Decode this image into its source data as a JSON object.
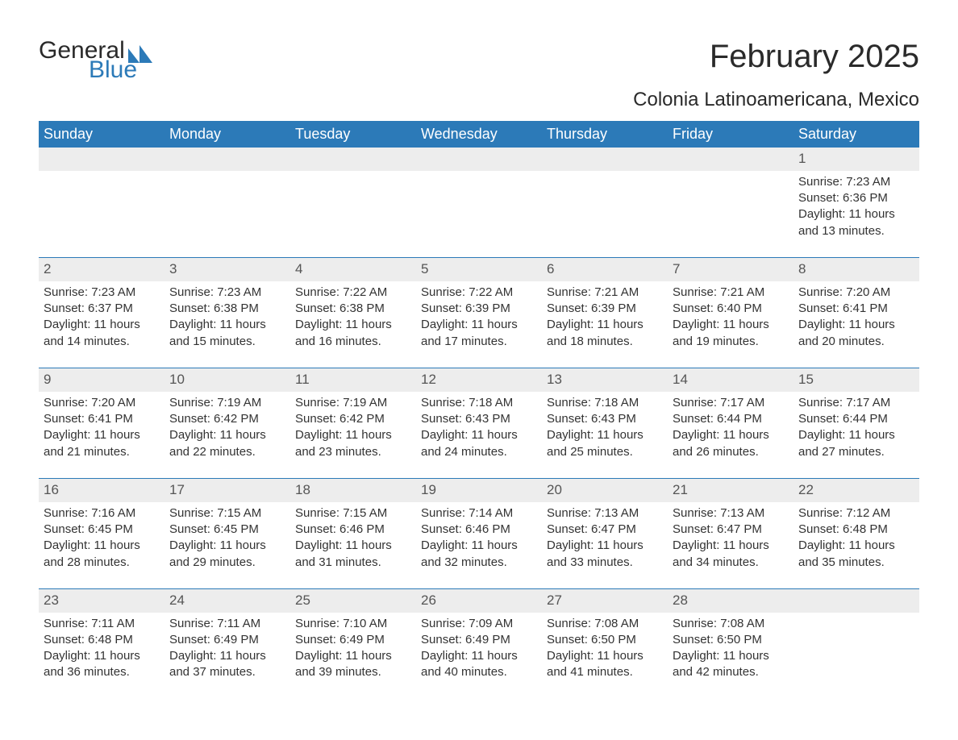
{
  "logo": {
    "text_general": "General",
    "text_blue": "Blue",
    "mark_color": "#2c7ab8"
  },
  "title": "February 2025",
  "location": "Colonia Latinoamericana, Mexico",
  "colors": {
    "header_bg": "#2c7ab8",
    "header_text": "#ffffff",
    "daynum_bg": "#ededed",
    "text": "#333333",
    "rule": "#2c7ab8"
  },
  "weekdays": [
    "Sunday",
    "Monday",
    "Tuesday",
    "Wednesday",
    "Thursday",
    "Friday",
    "Saturday"
  ],
  "weeks": [
    [
      {
        "day": "",
        "sunrise": "",
        "sunset": "",
        "daylight1": "",
        "daylight2": ""
      },
      {
        "day": "",
        "sunrise": "",
        "sunset": "",
        "daylight1": "",
        "daylight2": ""
      },
      {
        "day": "",
        "sunrise": "",
        "sunset": "",
        "daylight1": "",
        "daylight2": ""
      },
      {
        "day": "",
        "sunrise": "",
        "sunset": "",
        "daylight1": "",
        "daylight2": ""
      },
      {
        "day": "",
        "sunrise": "",
        "sunset": "",
        "daylight1": "",
        "daylight2": ""
      },
      {
        "day": "",
        "sunrise": "",
        "sunset": "",
        "daylight1": "",
        "daylight2": ""
      },
      {
        "day": "1",
        "sunrise": "Sunrise: 7:23 AM",
        "sunset": "Sunset: 6:36 PM",
        "daylight1": "Daylight: 11 hours",
        "daylight2": "and 13 minutes."
      }
    ],
    [
      {
        "day": "2",
        "sunrise": "Sunrise: 7:23 AM",
        "sunset": "Sunset: 6:37 PM",
        "daylight1": "Daylight: 11 hours",
        "daylight2": "and 14 minutes."
      },
      {
        "day": "3",
        "sunrise": "Sunrise: 7:23 AM",
        "sunset": "Sunset: 6:38 PM",
        "daylight1": "Daylight: 11 hours",
        "daylight2": "and 15 minutes."
      },
      {
        "day": "4",
        "sunrise": "Sunrise: 7:22 AM",
        "sunset": "Sunset: 6:38 PM",
        "daylight1": "Daylight: 11 hours",
        "daylight2": "and 16 minutes."
      },
      {
        "day": "5",
        "sunrise": "Sunrise: 7:22 AM",
        "sunset": "Sunset: 6:39 PM",
        "daylight1": "Daylight: 11 hours",
        "daylight2": "and 17 minutes."
      },
      {
        "day": "6",
        "sunrise": "Sunrise: 7:21 AM",
        "sunset": "Sunset: 6:39 PM",
        "daylight1": "Daylight: 11 hours",
        "daylight2": "and 18 minutes."
      },
      {
        "day": "7",
        "sunrise": "Sunrise: 7:21 AM",
        "sunset": "Sunset: 6:40 PM",
        "daylight1": "Daylight: 11 hours",
        "daylight2": "and 19 minutes."
      },
      {
        "day": "8",
        "sunrise": "Sunrise: 7:20 AM",
        "sunset": "Sunset: 6:41 PM",
        "daylight1": "Daylight: 11 hours",
        "daylight2": "and 20 minutes."
      }
    ],
    [
      {
        "day": "9",
        "sunrise": "Sunrise: 7:20 AM",
        "sunset": "Sunset: 6:41 PM",
        "daylight1": "Daylight: 11 hours",
        "daylight2": "and 21 minutes."
      },
      {
        "day": "10",
        "sunrise": "Sunrise: 7:19 AM",
        "sunset": "Sunset: 6:42 PM",
        "daylight1": "Daylight: 11 hours",
        "daylight2": "and 22 minutes."
      },
      {
        "day": "11",
        "sunrise": "Sunrise: 7:19 AM",
        "sunset": "Sunset: 6:42 PM",
        "daylight1": "Daylight: 11 hours",
        "daylight2": "and 23 minutes."
      },
      {
        "day": "12",
        "sunrise": "Sunrise: 7:18 AM",
        "sunset": "Sunset: 6:43 PM",
        "daylight1": "Daylight: 11 hours",
        "daylight2": "and 24 minutes."
      },
      {
        "day": "13",
        "sunrise": "Sunrise: 7:18 AM",
        "sunset": "Sunset: 6:43 PM",
        "daylight1": "Daylight: 11 hours",
        "daylight2": "and 25 minutes."
      },
      {
        "day": "14",
        "sunrise": "Sunrise: 7:17 AM",
        "sunset": "Sunset: 6:44 PM",
        "daylight1": "Daylight: 11 hours",
        "daylight2": "and 26 minutes."
      },
      {
        "day": "15",
        "sunrise": "Sunrise: 7:17 AM",
        "sunset": "Sunset: 6:44 PM",
        "daylight1": "Daylight: 11 hours",
        "daylight2": "and 27 minutes."
      }
    ],
    [
      {
        "day": "16",
        "sunrise": "Sunrise: 7:16 AM",
        "sunset": "Sunset: 6:45 PM",
        "daylight1": "Daylight: 11 hours",
        "daylight2": "and 28 minutes."
      },
      {
        "day": "17",
        "sunrise": "Sunrise: 7:15 AM",
        "sunset": "Sunset: 6:45 PM",
        "daylight1": "Daylight: 11 hours",
        "daylight2": "and 29 minutes."
      },
      {
        "day": "18",
        "sunrise": "Sunrise: 7:15 AM",
        "sunset": "Sunset: 6:46 PM",
        "daylight1": "Daylight: 11 hours",
        "daylight2": "and 31 minutes."
      },
      {
        "day": "19",
        "sunrise": "Sunrise: 7:14 AM",
        "sunset": "Sunset: 6:46 PM",
        "daylight1": "Daylight: 11 hours",
        "daylight2": "and 32 minutes."
      },
      {
        "day": "20",
        "sunrise": "Sunrise: 7:13 AM",
        "sunset": "Sunset: 6:47 PM",
        "daylight1": "Daylight: 11 hours",
        "daylight2": "and 33 minutes."
      },
      {
        "day": "21",
        "sunrise": "Sunrise: 7:13 AM",
        "sunset": "Sunset: 6:47 PM",
        "daylight1": "Daylight: 11 hours",
        "daylight2": "and 34 minutes."
      },
      {
        "day": "22",
        "sunrise": "Sunrise: 7:12 AM",
        "sunset": "Sunset: 6:48 PM",
        "daylight1": "Daylight: 11 hours",
        "daylight2": "and 35 minutes."
      }
    ],
    [
      {
        "day": "23",
        "sunrise": "Sunrise: 7:11 AM",
        "sunset": "Sunset: 6:48 PM",
        "daylight1": "Daylight: 11 hours",
        "daylight2": "and 36 minutes."
      },
      {
        "day": "24",
        "sunrise": "Sunrise: 7:11 AM",
        "sunset": "Sunset: 6:49 PM",
        "daylight1": "Daylight: 11 hours",
        "daylight2": "and 37 minutes."
      },
      {
        "day": "25",
        "sunrise": "Sunrise: 7:10 AM",
        "sunset": "Sunset: 6:49 PM",
        "daylight1": "Daylight: 11 hours",
        "daylight2": "and 39 minutes."
      },
      {
        "day": "26",
        "sunrise": "Sunrise: 7:09 AM",
        "sunset": "Sunset: 6:49 PM",
        "daylight1": "Daylight: 11 hours",
        "daylight2": "and 40 minutes."
      },
      {
        "day": "27",
        "sunrise": "Sunrise: 7:08 AM",
        "sunset": "Sunset: 6:50 PM",
        "daylight1": "Daylight: 11 hours",
        "daylight2": "and 41 minutes."
      },
      {
        "day": "28",
        "sunrise": "Sunrise: 7:08 AM",
        "sunset": "Sunset: 6:50 PM",
        "daylight1": "Daylight: 11 hours",
        "daylight2": "and 42 minutes."
      },
      {
        "day": "",
        "sunrise": "",
        "sunset": "",
        "daylight1": "",
        "daylight2": ""
      }
    ]
  ]
}
